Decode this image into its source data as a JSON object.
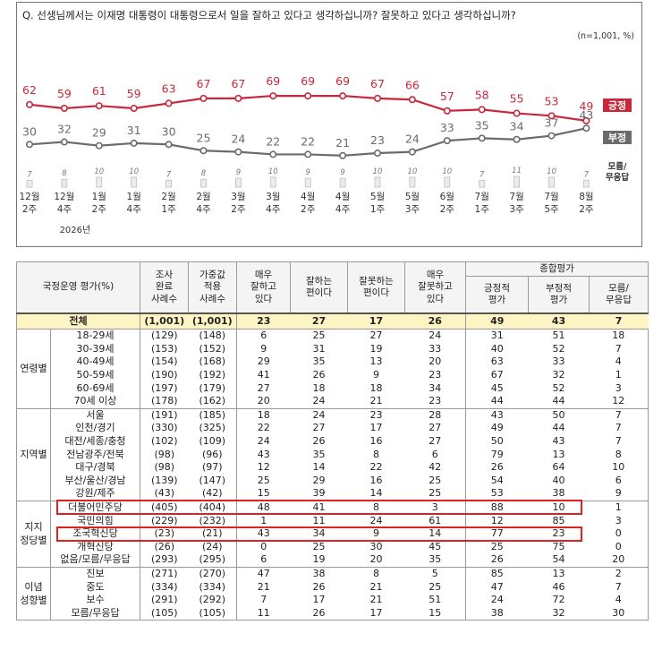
{
  "question": "Q. 선생님께서는 이재명 대통령이 대통령으로서 일을 잘하고 있다고 생각하십니까? 잘못하고 있다고 생각하십니까?",
  "unit": "(n=1,001,  %)",
  "chart_data": {
    "type": "line",
    "categories": [
      [
        "12월",
        "2주"
      ],
      [
        "12월",
        "4주"
      ],
      [
        "1월",
        "2주"
      ],
      [
        "1월",
        "4주"
      ],
      [
        "2월",
        "1주"
      ],
      [
        "2월",
        "4주"
      ],
      [
        "3월",
        "2주"
      ],
      [
        "3월",
        "4주"
      ],
      [
        "4월",
        "2주"
      ],
      [
        "4월",
        "4주"
      ],
      [
        "5월",
        "1주"
      ],
      [
        "5월",
        "3주"
      ],
      [
        "6월",
        "2주"
      ],
      [
        "7월",
        "1주"
      ],
      [
        "7월",
        "3주"
      ],
      [
        "7월",
        "5주"
      ],
      [
        "8월",
        "2주"
      ]
    ],
    "year_label": "2026년",
    "year_under_index": 1,
    "series": [
      {
        "name": "긍정",
        "color": "#c8283c",
        "values": [
          62,
          59,
          61,
          59,
          63,
          67,
          67,
          69,
          69,
          69,
          67,
          66,
          57,
          58,
          55,
          53,
          49
        ]
      },
      {
        "name": "부정",
        "color": "#6b6b6b",
        "values": [
          30,
          32,
          29,
          31,
          30,
          25,
          24,
          22,
          22,
          21,
          23,
          24,
          33,
          35,
          34,
          37,
          43
        ]
      },
      {
        "name": "모름/\n무응답",
        "color": "#8a8a8a",
        "values": [
          7,
          8,
          10,
          10,
          7,
          8,
          9,
          10,
          9,
          9,
          10,
          10,
          10,
          7,
          11,
          10,
          7
        ]
      }
    ],
    "legend": [
      "긍정",
      "부정",
      "모름/\n무응답"
    ],
    "colors": {
      "positive": "#c8283c",
      "negative": "#6b6b6b",
      "dontknow": "#a8a8a8"
    }
  },
  "table": {
    "header": {
      "col0": "국정운영 평가(%)",
      "cols": [
        "조사\n완료\n사례수",
        "가중값\n적용\n사례수",
        "매우\n잘하고\n있다",
        "잘하는\n편이다",
        "잘못하는\n편이다",
        "매우\n잘못하고\n있다"
      ],
      "group": "종합평가",
      "sub": [
        "긍정적\n평가",
        "부정적\n평가",
        "모름/\n무응답"
      ]
    },
    "total": {
      "label": "전체",
      "values": [
        "(1,001)",
        "(1,001)",
        "23",
        "27",
        "17",
        "26",
        "49",
        "43",
        "7"
      ]
    },
    "groups": [
      {
        "name": "연령별",
        "rows": [
          {
            "label": "18-29세",
            "values": [
              "(129)",
              "(148)",
              "6",
              "25",
              "27",
              "24",
              "31",
              "51",
              "18"
            ]
          },
          {
            "label": "30-39세",
            "values": [
              "(153)",
              "(152)",
              "9",
              "31",
              "19",
              "33",
              "40",
              "52",
              "7"
            ]
          },
          {
            "label": "40-49세",
            "values": [
              "(154)",
              "(168)",
              "29",
              "35",
              "13",
              "20",
              "63",
              "33",
              "4"
            ]
          },
          {
            "label": "50-59세",
            "values": [
              "(190)",
              "(192)",
              "41",
              "26",
              "9",
              "23",
              "67",
              "32",
              "1"
            ]
          },
          {
            "label": "60-69세",
            "values": [
              "(197)",
              "(179)",
              "27",
              "18",
              "18",
              "34",
              "45",
              "52",
              "3"
            ]
          },
          {
            "label": "70세 이상",
            "values": [
              "(178)",
              "(162)",
              "20",
              "24",
              "21",
              "23",
              "44",
              "44",
              "12"
            ]
          }
        ]
      },
      {
        "name": "지역별",
        "rows": [
          {
            "label": "서울",
            "values": [
              "(191)",
              "(185)",
              "18",
              "24",
              "23",
              "28",
              "43",
              "50",
              "7"
            ]
          },
          {
            "label": "인천/경기",
            "values": [
              "(330)",
              "(325)",
              "22",
              "27",
              "17",
              "27",
              "49",
              "44",
              "7"
            ]
          },
          {
            "label": "대전/세종/충청",
            "values": [
              "(102)",
              "(109)",
              "24",
              "26",
              "16",
              "27",
              "50",
              "43",
              "7"
            ]
          },
          {
            "label": "전남광주/전북",
            "values": [
              "(98)",
              "(96)",
              "43",
              "35",
              "8",
              "6",
              "79",
              "13",
              "8"
            ]
          },
          {
            "label": "대구/경북",
            "values": [
              "(98)",
              "(97)",
              "12",
              "14",
              "22",
              "42",
              "26",
              "64",
              "10"
            ]
          },
          {
            "label": "부산/울산/경남",
            "values": [
              "(139)",
              "(147)",
              "25",
              "29",
              "16",
              "25",
              "54",
              "40",
              "6"
            ]
          },
          {
            "label": "강원/제주",
            "values": [
              "(43)",
              "(42)",
              "15",
              "39",
              "14",
              "25",
              "53",
              "38",
              "9"
            ]
          }
        ]
      },
      {
        "name": "지지\n정당별",
        "rows": [
          {
            "label": "더불어민주당",
            "values": [
              "(405)",
              "(404)",
              "48",
              "41",
              "8",
              "3",
              "88",
              "10",
              "1"
            ],
            "highlight": true
          },
          {
            "label": "국민의힘",
            "values": [
              "(229)",
              "(232)",
              "1",
              "11",
              "24",
              "61",
              "12",
              "85",
              "3"
            ]
          },
          {
            "label": "조국혁신당",
            "values": [
              "(23)",
              "(21)",
              "43",
              "34",
              "9",
              "14",
              "77",
              "23",
              "0"
            ],
            "highlight": true
          },
          {
            "label": "개혁신당",
            "values": [
              "(26)",
              "(24)",
              "0",
              "25",
              "30",
              "45",
              "25",
              "75",
              "0"
            ]
          },
          {
            "label": "없음/모름/무응답",
            "values": [
              "(293)",
              "(295)",
              "6",
              "19",
              "20",
              "35",
              "26",
              "54",
              "20"
            ]
          }
        ]
      },
      {
        "name": "이념\n성향별",
        "rows": [
          {
            "label": "진보",
            "values": [
              "(271)",
              "(270)",
              "47",
              "38",
              "8",
              "5",
              "85",
              "13",
              "2"
            ]
          },
          {
            "label": "중도",
            "values": [
              "(334)",
              "(334)",
              "21",
              "26",
              "21",
              "25",
              "47",
              "46",
              "7"
            ]
          },
          {
            "label": "보수",
            "values": [
              "(291)",
              "(292)",
              "7",
              "17",
              "21",
              "51",
              "24",
              "72",
              "4"
            ]
          },
          {
            "label": "모름/무응답",
            "values": [
              "(105)",
              "(105)",
              "11",
              "26",
              "17",
              "15",
              "38",
              "32",
              "30"
            ]
          }
        ]
      }
    ],
    "highlight_color": "#e0221f"
  }
}
